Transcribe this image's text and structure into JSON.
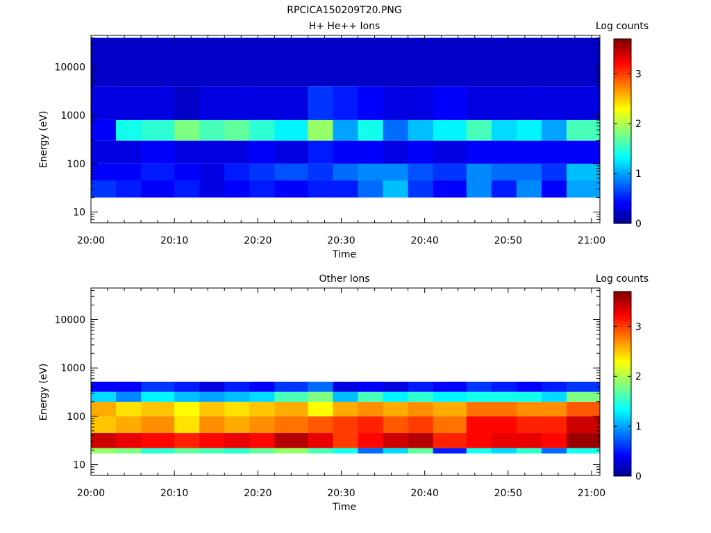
{
  "figure_title": "RPCICA150209T20.PNG",
  "chart_data": [
    {
      "type": "heatmap",
      "title": "H+ He++ Ions",
      "xlabel": "Time",
      "ylabel": "Energy (eV)",
      "yscale": "log",
      "ylim": [
        6,
        45000
      ],
      "xlim": [
        "20:00",
        "21:01"
      ],
      "x_tick_labels": [
        "20:00",
        "20:10",
        "20:20",
        "20:30",
        "20:40",
        "20:50",
        "21:00"
      ],
      "y_tick_labels": [
        "10",
        "100",
        "1000",
        "10000"
      ],
      "colorbar": {
        "label": "Log counts",
        "range": [
          0,
          3.7
        ],
        "tick_labels": [
          "0",
          "1",
          "2",
          "3"
        ]
      },
      "time_bins": [
        "20:00",
        "20:03",
        "20:06",
        "20:10",
        "20:13",
        "20:16",
        "20:19",
        "20:22",
        "20:26",
        "20:29",
        "20:32",
        "20:35",
        "20:38",
        "20:41",
        "20:45",
        "20:48",
        "20:51",
        "20:54",
        "20:57"
      ],
      "bands": [
        {
          "e": [
            20,
            45
          ],
          "v": [
            0.6,
            0.5,
            0.4,
            0.5,
            0.3,
            0.4,
            0.5,
            0.4,
            0.5,
            0.5,
            0.8,
            1.1,
            0.6,
            0.4,
            0.9,
            0.5,
            0.9,
            0.4,
            1.0
          ]
        },
        {
          "e": [
            45,
            100
          ],
          "v": [
            0.4,
            0.4,
            0.5,
            0.4,
            0.3,
            0.5,
            0.6,
            0.7,
            0.6,
            0.8,
            0.9,
            0.9,
            0.7,
            0.6,
            0.9,
            0.8,
            0.8,
            0.6,
            1.1
          ]
        },
        {
          "e": [
            100,
            300
          ],
          "v": [
            0.3,
            0.3,
            0.4,
            0.3,
            0.3,
            0.3,
            0.4,
            0.3,
            0.5,
            0.4,
            0.4,
            0.3,
            0.4,
            0.3,
            0.4,
            0.4,
            0.4,
            0.4,
            0.4
          ]
        },
        {
          "e": [
            300,
            800
          ],
          "v": [
            0.4,
            1.4,
            1.5,
            1.8,
            1.6,
            1.7,
            1.5,
            1.3,
            1.9,
            1.0,
            1.4,
            0.8,
            1.1,
            1.3,
            1.6,
            1.2,
            1.3,
            1.0,
            1.6
          ]
        },
        {
          "e": [
            800,
            4000
          ],
          "v": [
            0.3,
            0.3,
            0.3,
            0.2,
            0.3,
            0.3,
            0.3,
            0.3,
            0.6,
            0.5,
            0.4,
            0.3,
            0.3,
            0.4,
            0.3,
            0.3,
            0.3,
            0.3,
            0.3
          ]
        },
        {
          "e": [
            4000,
            40000
          ],
          "v": [
            0.2,
            0.2,
            0.2,
            0.2,
            0.2,
            0.2,
            0.2,
            0.2,
            0.2,
            0.2,
            0.2,
            0.2,
            0.2,
            0.2,
            0.2,
            0.2,
            0.2,
            0.2,
            0.2
          ]
        }
      ]
    },
    {
      "type": "heatmap",
      "title": "Other Ions",
      "xlabel": "Time",
      "ylabel": "Energy (eV)",
      "yscale": "log",
      "ylim": [
        6,
        45000
      ],
      "xlim": [
        "20:00",
        "21:01"
      ],
      "x_tick_labels": [
        "20:00",
        "20:10",
        "20:20",
        "20:30",
        "20:40",
        "20:50",
        "21:00"
      ],
      "y_tick_labels": [
        "10",
        "100",
        "1000",
        "10000"
      ],
      "colorbar": {
        "label": "Log counts",
        "range": [
          0,
          3.7
        ],
        "tick_labels": [
          "0",
          "1",
          "2",
          "3"
        ]
      },
      "time_bins": [
        "20:00",
        "20:03",
        "20:06",
        "20:10",
        "20:13",
        "20:16",
        "20:19",
        "20:22",
        "20:26",
        "20:29",
        "20:32",
        "20:35",
        "20:38",
        "20:41",
        "20:45",
        "20:48",
        "20:51",
        "20:54",
        "20:57"
      ],
      "bands": [
        {
          "e": [
            17,
            22
          ],
          "v": [
            1.9,
            1.8,
            1.5,
            1.7,
            1.6,
            1.5,
            1.7,
            1.9,
            1.6,
            1.4,
            0.8,
            1.2,
            1.7,
            0.5,
            1.4,
            1.2,
            1.5,
            0.8,
            1.4
          ]
        },
        {
          "e": [
            22,
            45
          ],
          "v": [
            3.4,
            3.3,
            3.2,
            3.1,
            3.2,
            3.3,
            3.2,
            3.5,
            3.3,
            3.0,
            3.2,
            3.4,
            3.5,
            3.1,
            3.2,
            3.3,
            3.3,
            3.2,
            3.6
          ]
        },
        {
          "e": [
            45,
            100
          ],
          "v": [
            2.5,
            2.6,
            2.7,
            2.4,
            2.7,
            2.6,
            2.7,
            2.8,
            2.9,
            3.0,
            3.1,
            2.9,
            3.0,
            2.8,
            3.2,
            3.2,
            3.1,
            3.1,
            3.4
          ]
        },
        {
          "e": [
            100,
            200
          ],
          "v": [
            2.6,
            2.4,
            2.5,
            2.3,
            2.5,
            2.4,
            2.5,
            2.6,
            2.3,
            2.6,
            2.7,
            2.6,
            2.7,
            2.6,
            2.8,
            2.8,
            2.7,
            2.7,
            2.9
          ]
        },
        {
          "e": [
            200,
            320
          ],
          "v": [
            1.2,
            0.9,
            1.3,
            1.1,
            1.0,
            1.1,
            1.2,
            1.6,
            1.8,
            1.1,
            1.6,
            1.3,
            1.5,
            1.3,
            1.4,
            1.4,
            1.4,
            1.2,
            1.8
          ]
        },
        {
          "e": [
            320,
            520
          ],
          "v": [
            0.4,
            0.4,
            0.6,
            0.5,
            0.3,
            0.5,
            0.4,
            0.6,
            0.8,
            0.3,
            0.4,
            0.3,
            0.5,
            0.4,
            0.6,
            0.5,
            0.4,
            0.5,
            0.6
          ]
        }
      ]
    }
  ]
}
